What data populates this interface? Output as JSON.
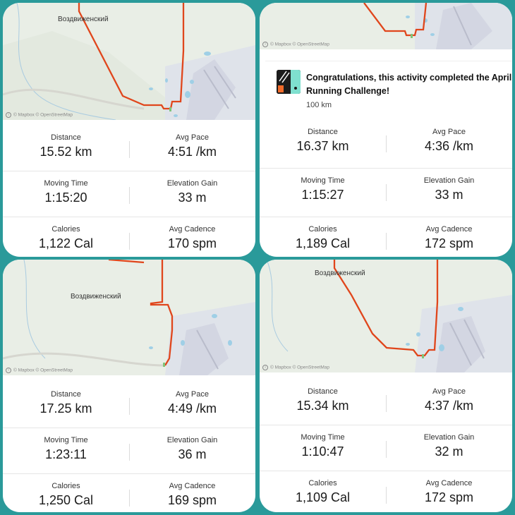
{
  "cards": [
    {
      "place_label": "Воздвиженский",
      "attribution": "© Mapbox © OpenStreetMap",
      "stats": [
        {
          "label": "Distance",
          "value": "15.52 km"
        },
        {
          "label": "Avg Pace",
          "value": "4:51 /km"
        },
        {
          "label": "Moving Time",
          "value": "1:15:20"
        },
        {
          "label": "Elevation Gain",
          "value": "33 m"
        },
        {
          "label": "Calories",
          "value": "1,122 Cal"
        },
        {
          "label": "Avg Cadence",
          "value": "170 spm"
        }
      ]
    },
    {
      "attribution": "© Mapbox © OpenStreetMap",
      "challenge": {
        "title": "Congratulations, this activity completed the April Running Challenge!",
        "subtitle": "100 km",
        "badge_icon": "challenge-badge-icon"
      },
      "stats": [
        {
          "label": "Distance",
          "value": "16.37 km"
        },
        {
          "label": "Avg Pace",
          "value": "4:36 /km"
        },
        {
          "label": "Moving Time",
          "value": "1:15:27"
        },
        {
          "label": "Elevation Gain",
          "value": "33 m"
        },
        {
          "label": "Calories",
          "value": "1,189 Cal"
        },
        {
          "label": "Avg Cadence",
          "value": "172 spm"
        }
      ]
    },
    {
      "place_label": "Воздвиженский",
      "attribution": "© Mapbox © OpenStreetMap",
      "stats": [
        {
          "label": "Distance",
          "value": "17.25 km"
        },
        {
          "label": "Avg Pace",
          "value": "4:49 /km"
        },
        {
          "label": "Moving Time",
          "value": "1:23:11"
        },
        {
          "label": "Elevation Gain",
          "value": "36 m"
        },
        {
          "label": "Calories",
          "value": "1,250 Cal"
        },
        {
          "label": "Avg Cadence",
          "value": "169 spm"
        }
      ]
    },
    {
      "place_label": "Воздвиженский",
      "attribution": "© Mapbox © OpenStreetMap",
      "stats": [
        {
          "label": "Distance",
          "value": "15.34 km"
        },
        {
          "label": "Avg Pace",
          "value": "4:37 /km"
        },
        {
          "label": "Moving Time",
          "value": "1:10:47"
        },
        {
          "label": "Elevation Gain",
          "value": "32 m"
        },
        {
          "label": "Calories",
          "value": "1,109 Cal"
        },
        {
          "label": "Avg Cadence",
          "value": "172 spm"
        }
      ]
    }
  ],
  "colors": {
    "background": "#2a9a9a",
    "route": "#e0461c",
    "map_land": "#e8ede4",
    "map_water": "#a7d3e8",
    "map_airfield": "#d9dbe6"
  }
}
